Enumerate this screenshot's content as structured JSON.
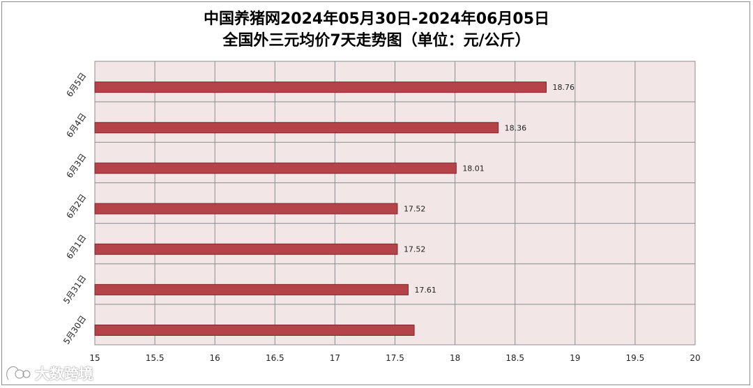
{
  "chart_data": {
    "type": "bar",
    "orientation": "horizontal",
    "title": "中国养猪网2024年05月30日-2024年06月05日",
    "subtitle": "全国外三元均价7天走势图（单位：元/公斤）",
    "categories": [
      "6月5日",
      "6月4日",
      "6月3日",
      "6月2日",
      "6月1日",
      "5月31日",
      "5月30日"
    ],
    "values": [
      18.76,
      18.36,
      18.01,
      17.52,
      17.52,
      17.61,
      null
    ],
    "value_labels": [
      "18.76",
      "18.36",
      "18.01",
      "17.52",
      "17.52",
      "17.61",
      ""
    ],
    "bar_end_values": [
      18.76,
      18.36,
      18.01,
      17.52,
      17.52,
      17.61,
      17.66
    ],
    "x_ticks": [
      "15",
      "15.5",
      "16",
      "16.5",
      "17",
      "17.5",
      "18",
      "18.5",
      "19",
      "19.5",
      "20"
    ],
    "xlim": [
      15,
      20
    ],
    "grid": true,
    "legend": "none",
    "colors": {
      "bar_fill": "#b5444a",
      "bar_edge": "#7e2227",
      "plot_background": "#f3e6e6",
      "grid": "#8c8c8c"
    }
  },
  "watermark": {
    "text": "大数跨境",
    "logo_icon": "brand-logo-icon"
  }
}
